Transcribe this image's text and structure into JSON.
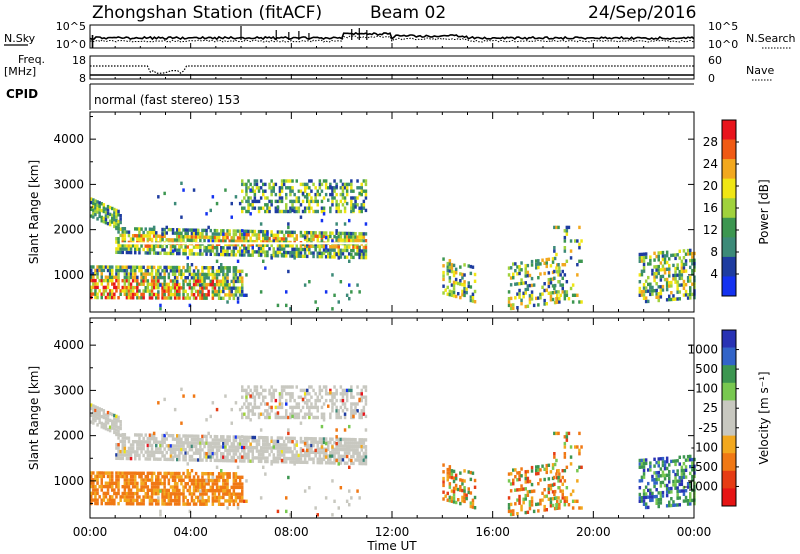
{
  "header": {
    "station": "Zhongshan Station (fitACF)",
    "beam": "Beam 02",
    "date": "24/Sep/2016"
  },
  "top_panels": {
    "nsky_label": "N.Sky",
    "nsky_ticks": [
      "10^5",
      "10^0"
    ],
    "nsearch_label": "N.Search",
    "nsearch_ticks": [
      "10^5",
      "10^0"
    ],
    "freq_label_1": "Freq.",
    "freq_label_2": "[MHz]",
    "freq_ticks": [
      "18",
      "8"
    ],
    "nave_label": "Nave",
    "nave_ticks": [
      "60",
      "0"
    ],
    "cpid_label": "CPID",
    "cpid_text": "normal (fast stereo) 153"
  },
  "chart_data": [
    {
      "type": "heatmap",
      "name": "power-panel",
      "ylabel": "Slant Range [km]",
      "yticks": [
        "4000",
        "3000",
        "2000",
        "1000"
      ],
      "ylim": [
        180,
        4600
      ],
      "xlabel": "Time UT",
      "xticks": [
        "00:00",
        "04:00",
        "08:00",
        "12:00",
        "16:00",
        "20:00",
        "00:00"
      ],
      "xlim_hours": [
        0,
        24
      ],
      "colorbar": {
        "label": "Power [dB]",
        "ticks": [
          "28",
          "24",
          "20",
          "16",
          "12",
          "8",
          "4"
        ],
        "colors": [
          "#e8141c",
          "#f05a14",
          "#f2a81e",
          "#f0e614",
          "#a0d23c",
          "#3c9650",
          "#3c8a78",
          "#1e3ca0",
          "#1432f0"
        ]
      }
    },
    {
      "type": "heatmap",
      "name": "velocity-panel",
      "ylabel": "Slant Range [km]",
      "yticks": [
        "4000",
        "3000",
        "2000",
        "1000"
      ],
      "ylim": [
        180,
        4600
      ],
      "xlabel": "Time UT",
      "xticks": [
        "00:00",
        "04:00",
        "08:00",
        "12:00",
        "16:00",
        "20:00",
        "00:00"
      ],
      "xlim_hours": [
        0,
        24
      ],
      "colorbar": {
        "label": "Velocity [m s⁻¹]",
        "ticks": [
          "1000",
          "500",
          "100",
          "25",
          "-25",
          "-100",
          "-500",
          "-1000"
        ],
        "colors": [
          "#2832b4",
          "#3264c8",
          "#3c9650",
          "#78c850",
          "#c8c8c0",
          "#c8c8c0",
          "#f2a81e",
          "#f07814",
          "#e63c14",
          "#e61414"
        ]
      }
    }
  ],
  "colors": {
    "ground_scatter": "#c8c8c0"
  }
}
